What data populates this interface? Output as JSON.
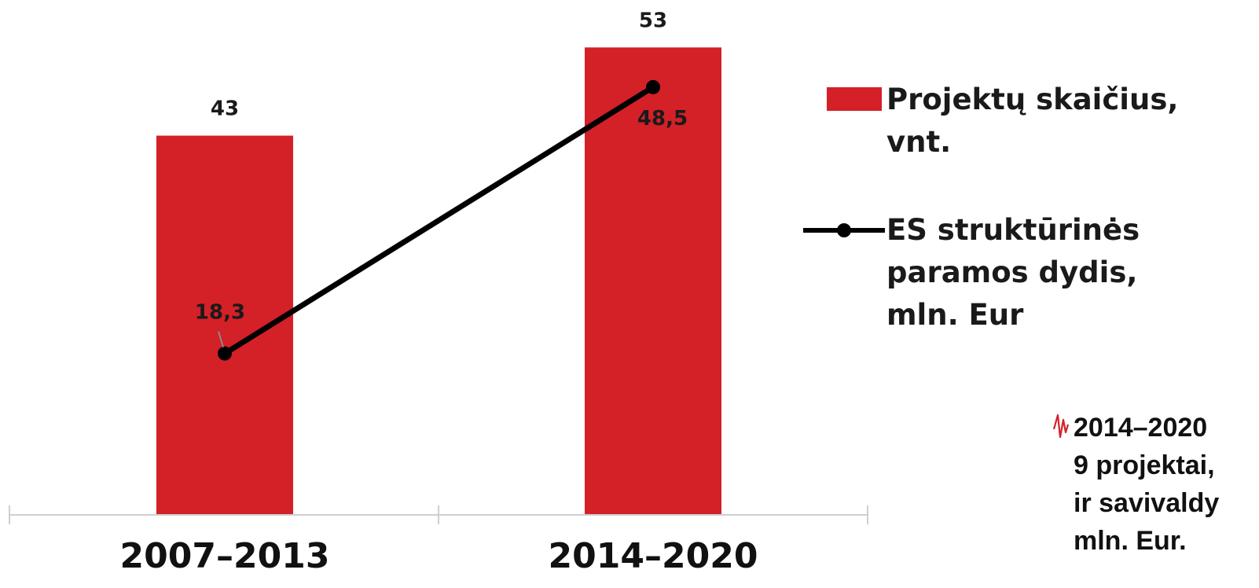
{
  "colors": {
    "bar": "#d42027",
    "line": "#000000",
    "axis": "#cfcfcf"
  },
  "chart_data": {
    "type": "bar",
    "categories": [
      "2007–2013",
      "2014–2020"
    ],
    "series": [
      {
        "name": "Projektų skaičius, vnt.",
        "type": "bar",
        "values": [
          43,
          53
        ],
        "value_labels": [
          "43",
          "53"
        ]
      },
      {
        "name": "ES struktūrinės paramos dydis, mln. Eur",
        "type": "line",
        "values": [
          18.3,
          48.5
        ],
        "value_labels": [
          "18,3",
          "48,5"
        ]
      }
    ],
    "ylim": [
      0,
      55
    ],
    "grid": false,
    "legend_position": "right"
  },
  "legend": {
    "bar_label": "Projektų skaičius, vnt.",
    "line_label": "ES struktūrinės paramos dydis, mln. Eur"
  },
  "note": {
    "icon": "pulse-icon",
    "text": "2014–2020\n9 projektai,\nir savivaldy\nmln. Eur."
  }
}
